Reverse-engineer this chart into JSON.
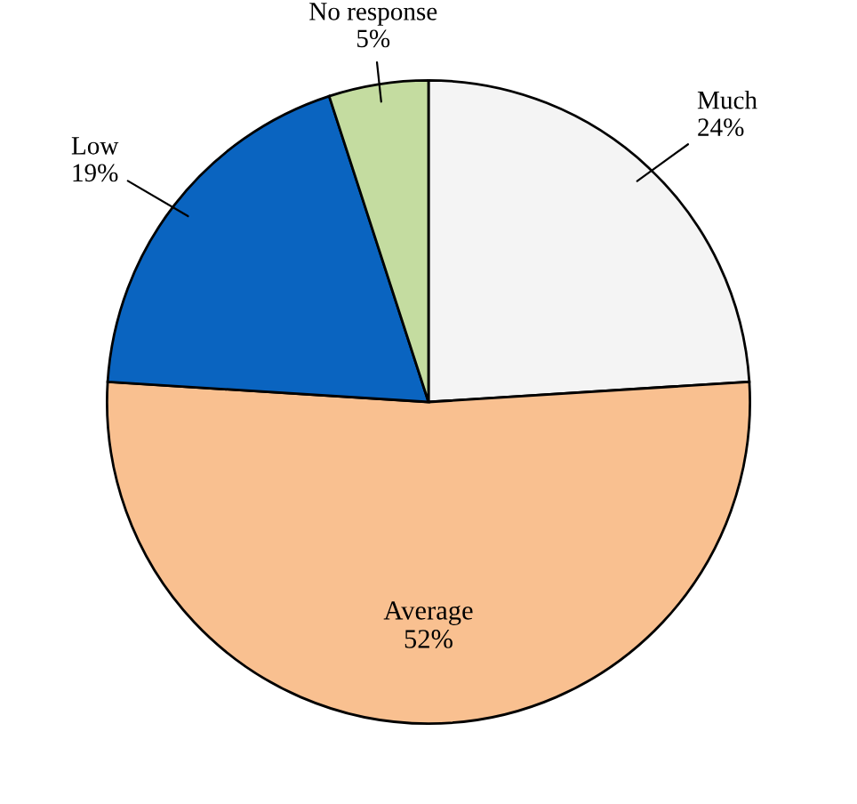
{
  "chart_data": {
    "type": "pie",
    "categories": [
      "Much",
      "Average",
      "Low",
      "No response"
    ],
    "values": [
      24,
      52,
      19,
      5
    ],
    "colors": [
      "#f4f4f4",
      "#f9c090",
      "#0a64c0",
      "#c4dca0"
    ],
    "value_labels": [
      "24%",
      "52%",
      "19%",
      "5%"
    ]
  }
}
